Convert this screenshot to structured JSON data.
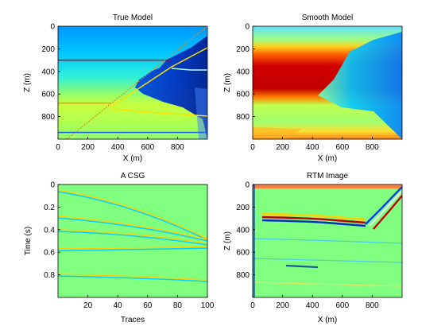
{
  "chart_data": [
    {
      "type": "heatmap",
      "title": "True Model",
      "xlabel": "X (m)",
      "ylabel": "Z (m)",
      "xlim": [
        0,
        1000
      ],
      "ylim": [
        1000,
        0
      ],
      "xticks": [
        0,
        200,
        400,
        600,
        800
      ],
      "yticks": [
        0,
        200,
        400,
        600,
        800
      ],
      "colormap": "jet",
      "description_of_content": "layered velocity model with interfaces near depths 300, 680, 940 m and a high-velocity wedge dipping from x≈750 to x≈1000",
      "interfaces": [
        {
          "z": 300,
          "x_from": 0,
          "x_to": 760
        },
        {
          "z": 680,
          "x_from": 0,
          "x_to": 350
        },
        {
          "z": 940,
          "x_from": 0,
          "x_to": 1000
        }
      ],
      "reflector_dipping": [
        [
          350,
          710
        ],
        [
          760,
          360
        ],
        [
          1000,
          190
        ]
      ],
      "source_ray": [
        [
          60,
          1000
        ],
        [
          1000,
          0
        ]
      ]
    },
    {
      "type": "heatmap",
      "title": "Smooth Model",
      "xlabel": "X (m)",
      "ylabel": "Z (m)",
      "xlim": [
        0,
        1000
      ],
      "ylim": [
        1000,
        0
      ],
      "xticks": [
        0,
        200,
        400,
        600,
        800
      ],
      "yticks": [
        0,
        200,
        400,
        600,
        800
      ],
      "colormap": "jet"
    },
    {
      "type": "heatmap",
      "title": "A CSG",
      "xlabel": "Traces",
      "ylabel": "Time (s)",
      "xlim": [
        0,
        100
      ],
      "ylim": [
        1.0,
        0
      ],
      "xticks": [
        20,
        40,
        60,
        80,
        100
      ],
      "yticks": [
        0,
        0.2,
        0.4,
        0.6,
        0.8
      ],
      "colormap": "jet",
      "events": [
        {
          "t0": 0.05,
          "t_end": 0.5
        },
        {
          "t0": 0.28,
          "t_end": 0.48
        },
        {
          "t0": 0.4,
          "t_end": 0.52
        },
        {
          "t0": 0.57,
          "t_end": 0.55
        },
        {
          "t0": 0.8,
          "t_end": 0.84
        }
      ]
    },
    {
      "type": "heatmap",
      "title": "RTM Image",
      "xlabel": "X (m)",
      "ylabel": "Z (m)",
      "xlim": [
        0,
        1000
      ],
      "ylim": [
        1000,
        0
      ],
      "xticks": [
        0,
        200,
        400,
        600,
        800
      ],
      "yticks": [
        0,
        200,
        400,
        600,
        800
      ],
      "colormap": "jet"
    }
  ],
  "colors": {
    "background": "#ffffff",
    "jet_dark_blue": "#00008f",
    "jet_blue": "#0070ff",
    "jet_cyan": "#00e0ff",
    "jet_green": "#80ff80",
    "jet_yellow": "#ffe000",
    "jet_orange": "#ff6000",
    "jet_red": "#c00000"
  }
}
